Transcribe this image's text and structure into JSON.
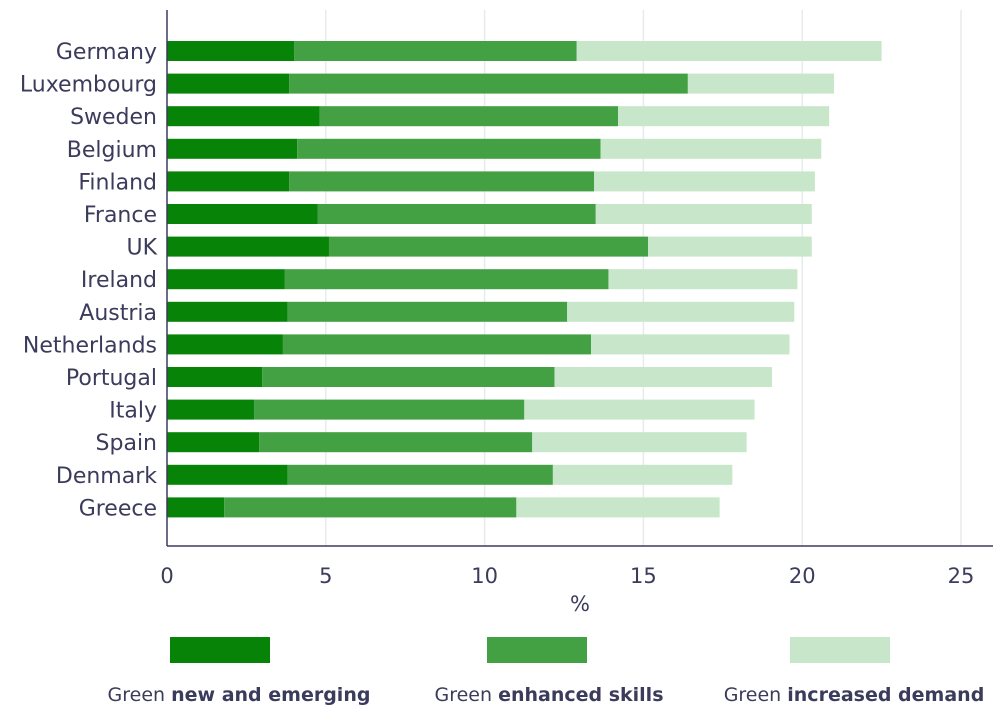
{
  "chart_data": {
    "type": "bar",
    "orientation": "horizontal",
    "stacked": true,
    "categories": [
      "Germany",
      "Luxembourg",
      "Sweden",
      "Belgium",
      "Finland",
      "France",
      "UK",
      "Ireland",
      "Austria",
      "Netherlands",
      "Portugal",
      "Italy",
      "Spain",
      "Denmark",
      "Greece"
    ],
    "series": [
      {
        "name_prefix": "Green",
        "name_bold": "new and emerging",
        "color": "#078407",
        "values": [
          4.0,
          3.85,
          4.8,
          4.1,
          3.85,
          4.75,
          5.1,
          3.7,
          3.8,
          3.65,
          3.0,
          2.75,
          2.9,
          3.8,
          1.8
        ]
      },
      {
        "name_prefix": "Green",
        "name_bold": "enhanced skills",
        "color": "#43a043",
        "values": [
          8.9,
          12.55,
          9.4,
          9.55,
          9.6,
          8.75,
          10.05,
          10.2,
          8.8,
          9.7,
          9.2,
          8.5,
          8.6,
          8.35,
          9.2
        ]
      },
      {
        "name_prefix": "Green",
        "name_bold": "increased demand",
        "color": "#c8e6c9",
        "values": [
          9.6,
          4.6,
          6.65,
          6.95,
          6.95,
          6.8,
          5.15,
          5.95,
          7.15,
          6.25,
          6.85,
          7.25,
          6.75,
          5.65,
          6.4
        ]
      }
    ],
    "xlabel": "%",
    "ylabel": "",
    "xlim": [
      0,
      25
    ],
    "xticks": [
      0,
      5,
      10,
      15,
      20,
      25
    ],
    "grid": "vertical",
    "legend_position": "bottom"
  }
}
